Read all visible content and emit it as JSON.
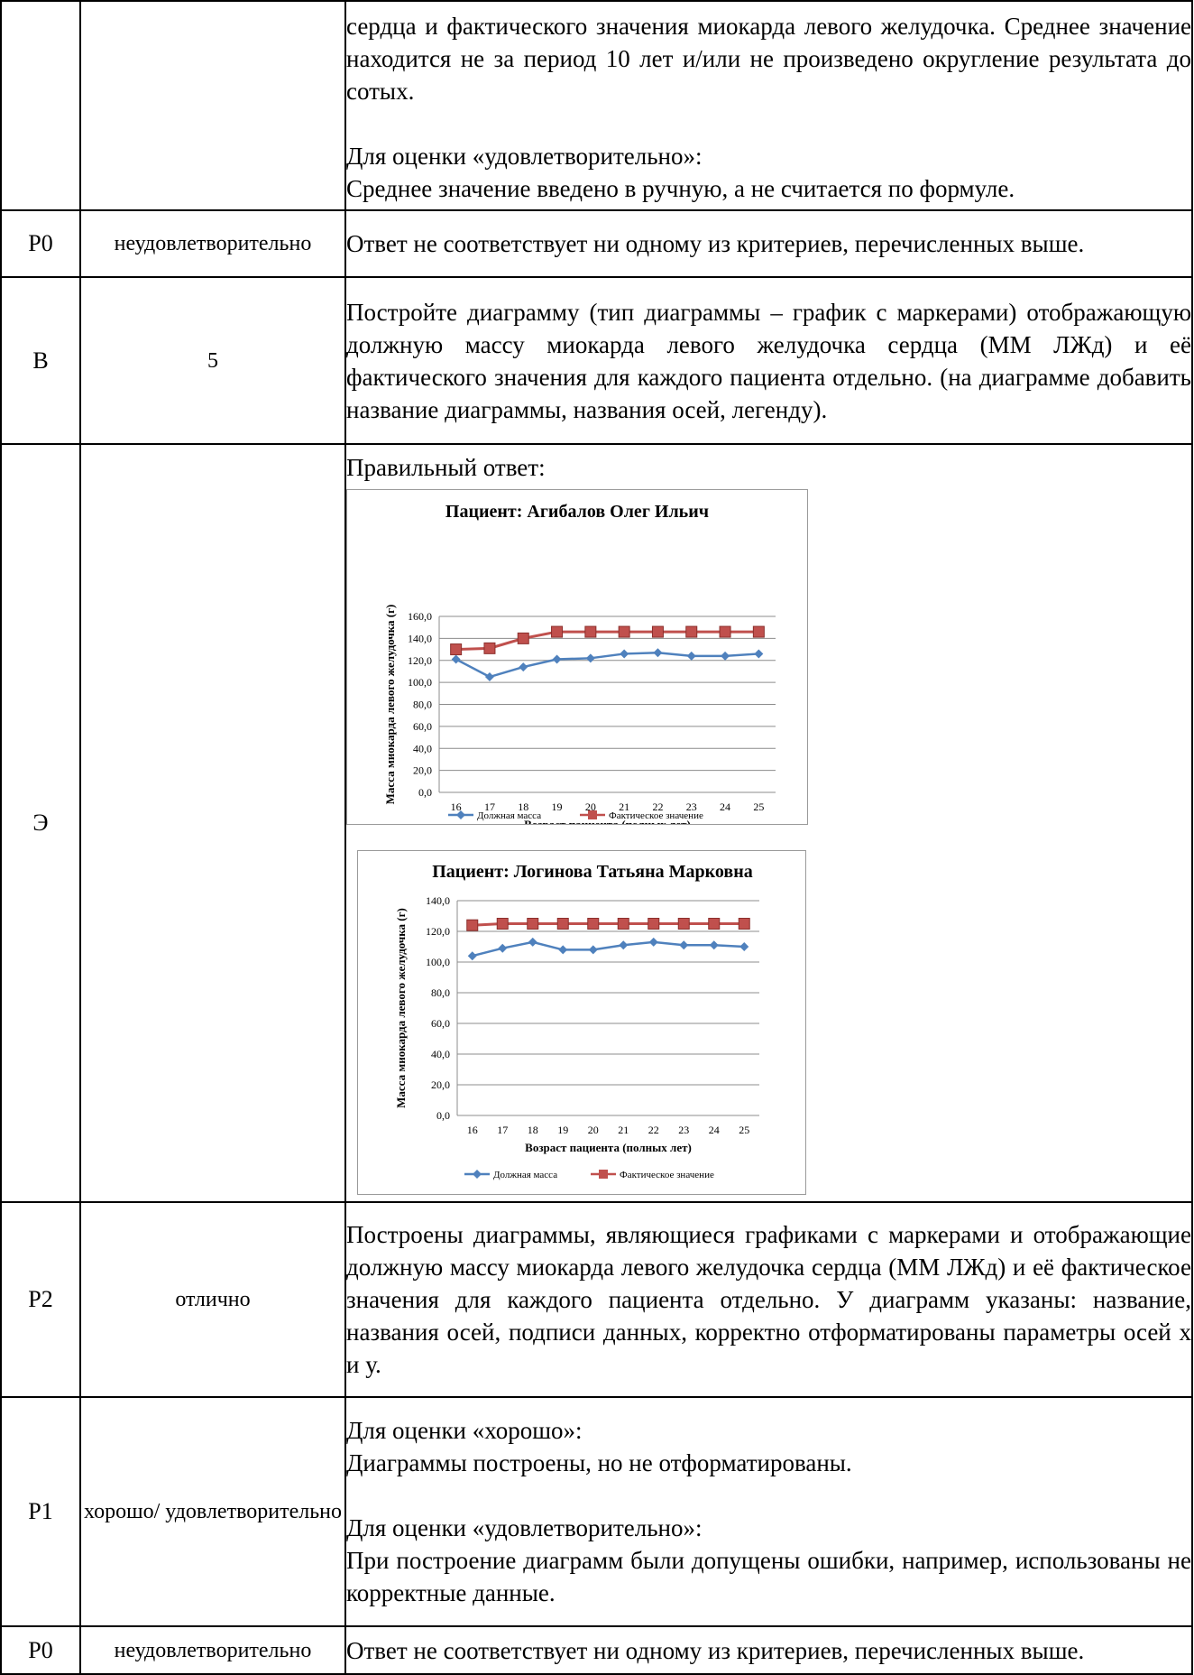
{
  "rows": [
    {
      "code": "",
      "grade": "",
      "text": [
        "сердца и фактического значения миокарда левого желудочка. Среднее значение находится не за период 10 лет и/или не произведено округление результата до сотых.",
        "",
        "Для оценки «удовлетворительно»:",
        "Среднее значение введено в ручную, а не считается по формуле."
      ]
    },
    {
      "code": "P0",
      "grade": "неудовлетворительно",
      "text": [
        "Ответ не соответствует ни одному из критериев, перечисленных выше."
      ]
    },
    {
      "code": "В",
      "grade": "5",
      "text": [
        "Постройте диаграмму (тип диаграммы – график с маркерами) отображающую должную массу миокарда левого желудочка сердца (ММ ЛЖд) и её фактического значения для каждого пациента отдельно. (на диаграмме добавить название диаграммы, названия осей, легенду)."
      ]
    },
    {
      "code": "Э",
      "grade": "",
      "text": [
        "Правильный ответ:"
      ]
    },
    {
      "code": "P2",
      "grade": "отлично",
      "text": [
        "Построены диаграммы, являющиеся графиками с маркерами и отображающие должную массу миокарда левого желудочка сердца (ММ ЛЖд) и её фактическое значения для каждого пациента отдельно. У диаграмм указаны: название, названия осей, подписи данных, корректно отформатированы параметры осей х и у."
      ]
    },
    {
      "code": "P1",
      "grade": "хорошо/ удовлетворительно",
      "text": [
        "Для оценки «хорошо»:",
        "Диаграммы построены, но не отформатированы.",
        "",
        "Для оценки «удовлетворительно»:",
        "При построение диаграмм были допущены ошибки, например, использованы не корректные данные."
      ]
    },
    {
      "code": "P0",
      "grade": "неудовлетворительно",
      "text": [
        "Ответ не соответствует ни одному из критериев, перечисленных выше."
      ]
    }
  ],
  "chart_data": [
    {
      "type": "line",
      "title": "Пациент: Агибалов Олег Ильич",
      "xlabel": "Возраст пациента (полных лет)",
      "ylabel": "Масса миокарда левого желудочка (г)",
      "categories": [
        "16",
        "17",
        "18",
        "19",
        "20",
        "21",
        "22",
        "23",
        "24",
        "25"
      ],
      "ylim": [
        0,
        160
      ],
      "yticks": [
        "0,0",
        "20,0",
        "40,0",
        "60,0",
        "80,0",
        "100,0",
        "120,0",
        "140,0",
        "160,0"
      ],
      "grid": true,
      "legend_position": "bottom",
      "series": [
        {
          "name": "Должная масса",
          "color": "#4f81bd",
          "marker": "diamond",
          "values": [
            121,
            105,
            114,
            121,
            122,
            126,
            127,
            124,
            124,
            126
          ]
        },
        {
          "name": "Фактическое значение",
          "color": "#c0504d",
          "marker": "square",
          "values": [
            130,
            131,
            140,
            146,
            146,
            146,
            146,
            146,
            146,
            146
          ]
        }
      ]
    },
    {
      "type": "line",
      "title": "Пациент: Логинова Татьяна Марковна",
      "xlabel": "Возраст пациента (полных лет)",
      "ylabel": "Масса миокарда левого желудочка (г)",
      "categories": [
        "16",
        "17",
        "18",
        "19",
        "20",
        "21",
        "22",
        "23",
        "24",
        "25"
      ],
      "ylim": [
        0,
        140
      ],
      "yticks": [
        "0,0",
        "20,0",
        "40,0",
        "60,0",
        "80,0",
        "100,0",
        "120,0",
        "140,0"
      ],
      "grid": true,
      "legend_position": "bottom",
      "series": [
        {
          "name": "Должная масса",
          "color": "#4f81bd",
          "marker": "diamond",
          "values": [
            104,
            109,
            113,
            108,
            108,
            111,
            113,
            111,
            111,
            110
          ]
        },
        {
          "name": "Фактическое значение",
          "color": "#c0504d",
          "marker": "square",
          "values": [
            124,
            125,
            125,
            125,
            125,
            125,
            125,
            125,
            125,
            125
          ]
        }
      ]
    }
  ]
}
